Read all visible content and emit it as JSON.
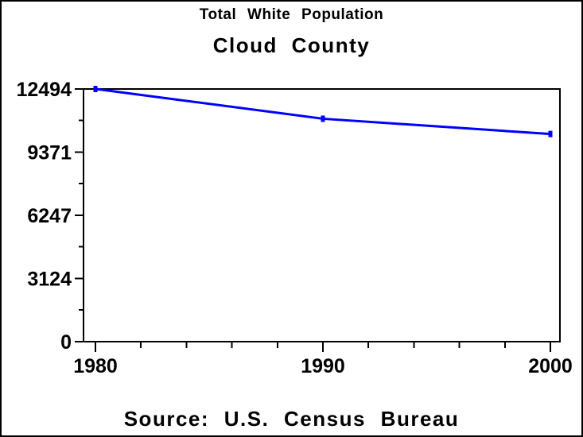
{
  "window": {
    "background": "#ffffff",
    "border_color": "#000000"
  },
  "titles": {
    "line1": "Total White Population",
    "line2": "Cloud County"
  },
  "footnote": "Source: U.S. Census Bureau",
  "chart_data": {
    "type": "line",
    "title": "Total White Population",
    "subtitle": "Cloud County",
    "source_note": "Source: U.S. Census Bureau",
    "x": [
      1980,
      1990,
      2000
    ],
    "series": [
      {
        "name": "Total White Population",
        "values": [
          12494,
          11023,
          10268
        ]
      }
    ],
    "xlim": [
      1980,
      2000
    ],
    "ylim": [
      0,
      12494
    ],
    "x_major_ticks": [
      1980,
      1990,
      2000
    ],
    "x_tick_labels": [
      "1980",
      "1990",
      "2000"
    ],
    "x_minor_tick_step": 2,
    "y_major_ticks": [
      0,
      3124,
      6247,
      9371,
      12494
    ],
    "y_tick_labels": [
      "0",
      "3124",
      "6247",
      "9371",
      "12494"
    ],
    "y_minor_ticks_at_midpoints": true,
    "grid": false,
    "legend": false,
    "frame": true,
    "marker": "square-dot",
    "line_color": "#0000ff",
    "axis_color": "#000000",
    "text_color": "#000000"
  }
}
